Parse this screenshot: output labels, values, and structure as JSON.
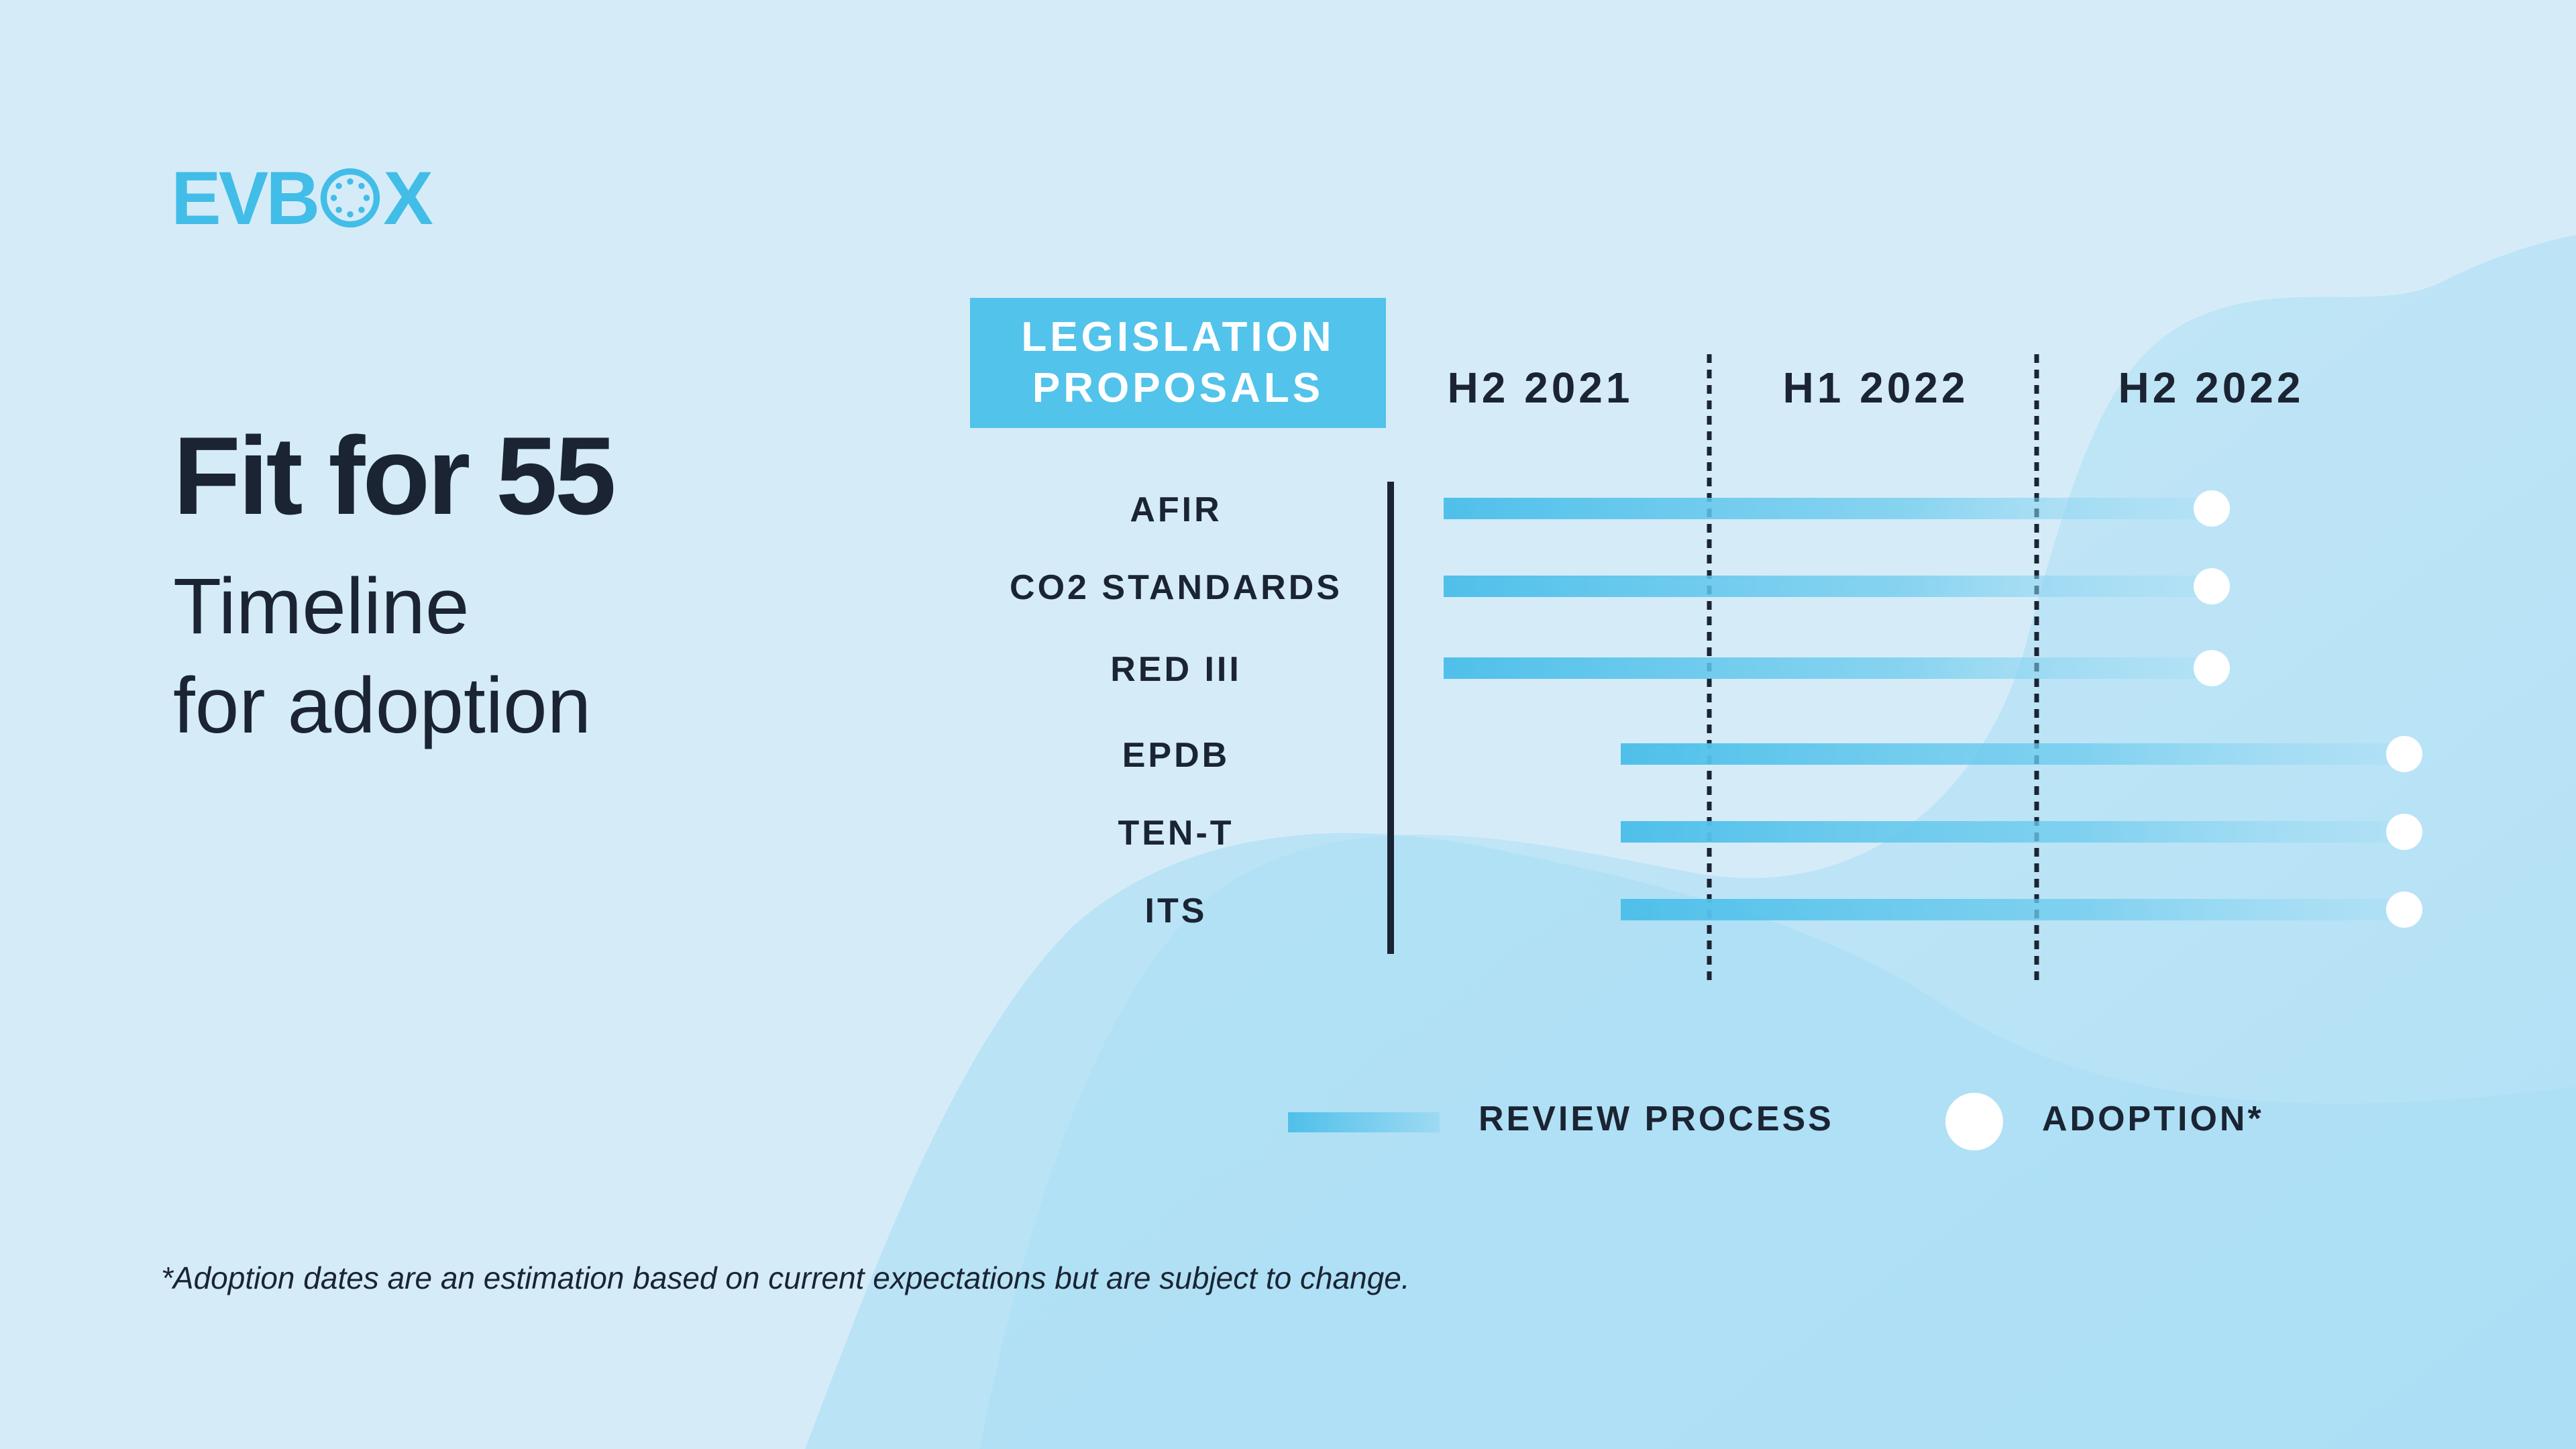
{
  "brand": {
    "logo_text_left": "EVB",
    "logo_text_right": "X",
    "color": "#42bde8"
  },
  "heading": {
    "title": "Fit for 55",
    "subtitle_line1": "Timeline",
    "subtitle_line2": "for adoption"
  },
  "footnote": "*Adoption dates are an estimation based on current expectations but are subject to change.",
  "chart_data": {
    "type": "timeline",
    "row_header": [
      "LEGISLATION",
      "PROPOSALS"
    ],
    "periods": [
      "H2 2021",
      "H1 2022",
      "H2 2022"
    ],
    "rows": [
      {
        "label": "AFIR",
        "review_start": "H2 2021",
        "adoption": "H2 2022"
      },
      {
        "label": "CO2 STANDARDS",
        "review_start": "H2 2021",
        "adoption": "H2 2022"
      },
      {
        "label": "RED III",
        "review_start": "H2 2021",
        "adoption": "H2 2022"
      },
      {
        "label": "EPDB",
        "review_start": "H2 2021",
        "adoption": "H2 2022"
      },
      {
        "label": "TEN-T",
        "review_start": "H2 2021",
        "adoption": "H2 2022"
      },
      {
        "label": "ITS",
        "review_start": "H2 2021",
        "adoption": "H2 2022"
      }
    ],
    "legend": {
      "review": "REVIEW PROCESS",
      "adoption": "ADOPTION*"
    },
    "colors": {
      "bar": "#4fc0ea",
      "adoption_marker": "#ffffff",
      "axis": "#1b2433"
    }
  }
}
